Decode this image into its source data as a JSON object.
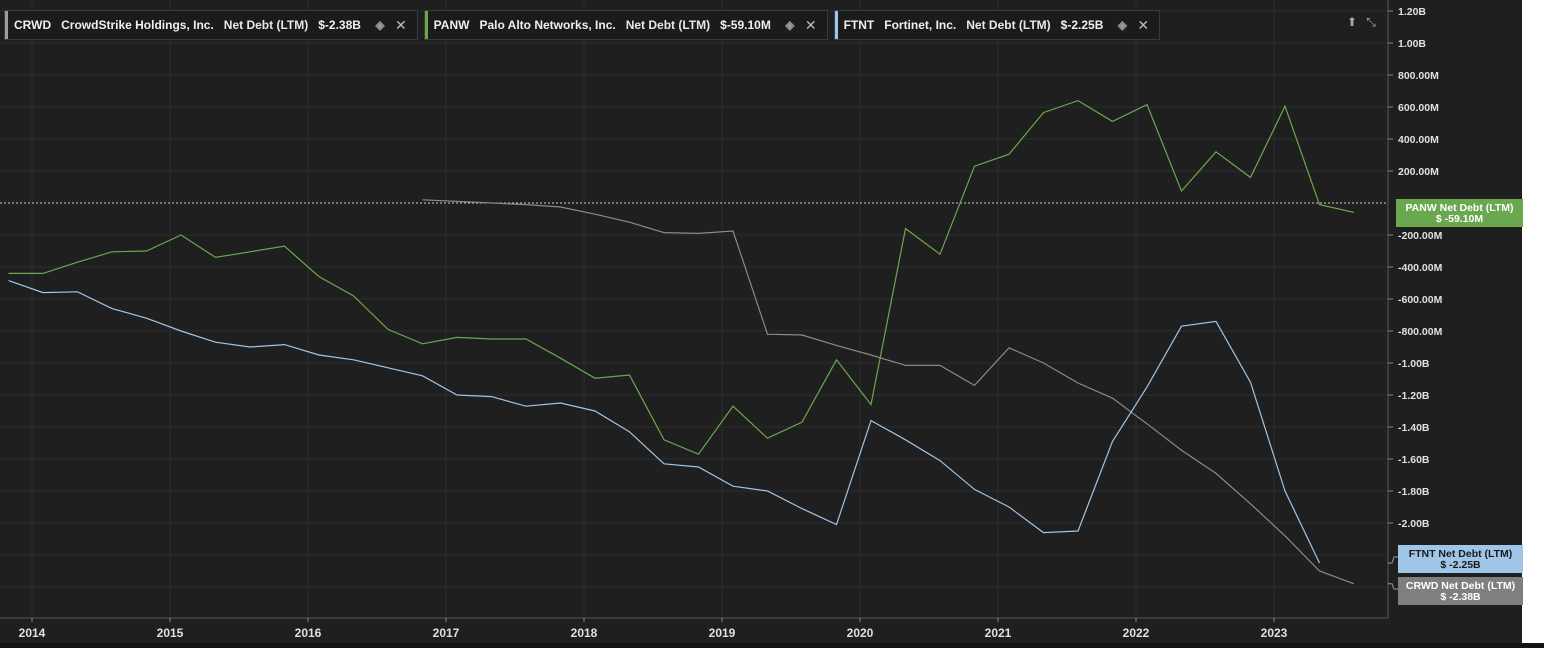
{
  "legend": [
    {
      "ticker": "CRWD",
      "company": "CrowdStrike Holdings, Inc.",
      "metric": "Net Debt (LTM)",
      "value": "$-2.38B",
      "color": "#9e9e9e"
    },
    {
      "ticker": "PANW",
      "company": "Palo Alto Networks, Inc.",
      "metric": "Net Debt (LTM)",
      "value": "$-59.10M",
      "color": "#6aa84f"
    },
    {
      "ticker": "FTNT",
      "company": "Fortinet, Inc.",
      "metric": "Net Debt (LTM)",
      "value": "$-2.25B",
      "color": "#9fc5e8"
    }
  ],
  "tags": {
    "panw": {
      "line1": "PANW Net Debt (LTM)",
      "line2": "$ -59.10M",
      "color": "#6aa84f",
      "text_color": "#ffffff"
    },
    "ftnt": {
      "line1": "FTNT Net Debt (LTM)",
      "line2": "$ -2.25B",
      "color": "#9fc5e8",
      "text_color": "#1a1a1a"
    },
    "crwd": {
      "line1": "CRWD Net Debt (LTM)",
      "line2": "$ -2.38B",
      "color": "#7f7f7f",
      "text_color": "#ffffff"
    }
  },
  "chart_data": {
    "type": "line",
    "ylim": [
      -2500,
      1200
    ],
    "xlim": [
      2013.83,
      2023.92
    ],
    "y_ticks": [
      1200,
      1000,
      800,
      600,
      400,
      200,
      -200,
      -400,
      -600,
      -800,
      -1000,
      -1200,
      -1400,
      -1600,
      -1800,
      -2000
    ],
    "y_tick_labels": [
      "1.20B",
      "1.00B",
      "800.00M",
      "600.00M",
      "400.00M",
      "200.00M",
      "-200.00M",
      "-400.00M",
      "-600.00M",
      "-800.00M",
      "-1.00B",
      "-1.20B",
      "-1.40B",
      "-1.60B",
      "-1.80B",
      "-2.00B"
    ],
    "x_ticks": [
      2014,
      2015,
      2016,
      2017,
      2018,
      2019,
      2020,
      2021,
      2022,
      2023
    ],
    "x_tick_labels": [
      "2014",
      "2015",
      "2016",
      "2017",
      "2018",
      "2019",
      "2020",
      "2021",
      "2022",
      "2023"
    ],
    "zero_line": 0,
    "series": [
      {
        "name": "PANW",
        "color": "#6aa84f",
        "points": [
          [
            2013.83,
            -440
          ],
          [
            2014.08,
            -440
          ],
          [
            2014.33,
            -370
          ],
          [
            2014.58,
            -305
          ],
          [
            2014.83,
            -300
          ],
          [
            2015.08,
            -200
          ],
          [
            2015.33,
            -340
          ],
          [
            2015.58,
            -305
          ],
          [
            2015.83,
            -270
          ],
          [
            2016.08,
            -460
          ],
          [
            2016.33,
            -580
          ],
          [
            2016.58,
            -790
          ],
          [
            2016.83,
            -880
          ],
          [
            2017.08,
            -840
          ],
          [
            2017.33,
            -850
          ],
          [
            2017.58,
            -850
          ],
          [
            2017.83,
            -970
          ],
          [
            2018.08,
            -1095
          ],
          [
            2018.33,
            -1075
          ],
          [
            2018.58,
            -1480
          ],
          [
            2018.83,
            -1570
          ],
          [
            2019.08,
            -1270
          ],
          [
            2019.33,
            -1470
          ],
          [
            2019.58,
            -1370
          ],
          [
            2019.83,
            -980
          ],
          [
            2020.08,
            -1260
          ],
          [
            2020.33,
            -160
          ],
          [
            2020.58,
            -320
          ],
          [
            2020.83,
            230
          ],
          [
            2021.08,
            305
          ],
          [
            2021.33,
            565
          ],
          [
            2021.58,
            640
          ],
          [
            2021.83,
            510
          ],
          [
            2022.08,
            615
          ],
          [
            2022.33,
            75
          ],
          [
            2022.58,
            320
          ],
          [
            2022.83,
            160
          ],
          [
            2023.08,
            605
          ],
          [
            2023.33,
            -10
          ],
          [
            2023.58,
            -59
          ]
        ]
      },
      {
        "name": "FTNT",
        "color": "#9fc5e8",
        "points": [
          [
            2013.83,
            -485
          ],
          [
            2014.08,
            -560
          ],
          [
            2014.33,
            -555
          ],
          [
            2014.58,
            -660
          ],
          [
            2014.83,
            -720
          ],
          [
            2015.08,
            -800
          ],
          [
            2015.33,
            -870
          ],
          [
            2015.58,
            -900
          ],
          [
            2015.83,
            -885
          ],
          [
            2016.08,
            -950
          ],
          [
            2016.33,
            -980
          ],
          [
            2016.58,
            -1030
          ],
          [
            2016.83,
            -1080
          ],
          [
            2017.08,
            -1200
          ],
          [
            2017.33,
            -1210
          ],
          [
            2017.58,
            -1270
          ],
          [
            2017.83,
            -1250
          ],
          [
            2018.08,
            -1300
          ],
          [
            2018.33,
            -1430
          ],
          [
            2018.58,
            -1630
          ],
          [
            2018.83,
            -1650
          ],
          [
            2019.08,
            -1770
          ],
          [
            2019.33,
            -1800
          ],
          [
            2019.58,
            -1910
          ],
          [
            2019.83,
            -2010
          ],
          [
            2020.08,
            -1360
          ],
          [
            2020.33,
            -1480
          ],
          [
            2020.58,
            -1610
          ],
          [
            2020.83,
            -1790
          ],
          [
            2021.08,
            -1900
          ],
          [
            2021.33,
            -2060
          ],
          [
            2021.58,
            -2050
          ],
          [
            2021.83,
            -1490
          ],
          [
            2022.08,
            -1150
          ],
          [
            2022.33,
            -770
          ],
          [
            2022.58,
            -740
          ],
          [
            2022.83,
            -1120
          ],
          [
            2023.08,
            -1800
          ],
          [
            2023.33,
            -2250
          ]
        ]
      },
      {
        "name": "CRWD",
        "color": "#8a8a8a",
        "points": [
          [
            2016.83,
            20
          ],
          [
            2017.08,
            10
          ],
          [
            2017.33,
            0
          ],
          [
            2017.58,
            -10
          ],
          [
            2017.83,
            -25
          ],
          [
            2018.08,
            -70
          ],
          [
            2018.33,
            -120
          ],
          [
            2018.58,
            -185
          ],
          [
            2018.83,
            -190
          ],
          [
            2019.08,
            -175
          ],
          [
            2019.33,
            -820
          ],
          [
            2019.58,
            -825
          ],
          [
            2019.83,
            -890
          ],
          [
            2020.08,
            -950
          ],
          [
            2020.33,
            -1015
          ],
          [
            2020.58,
            -1015
          ],
          [
            2020.83,
            -1140
          ],
          [
            2021.08,
            -905
          ],
          [
            2021.33,
            -1000
          ],
          [
            2021.58,
            -1125
          ],
          [
            2021.83,
            -1220
          ],
          [
            2022.08,
            -1380
          ],
          [
            2022.33,
            -1545
          ],
          [
            2022.58,
            -1690
          ],
          [
            2022.83,
            -1880
          ],
          [
            2023.08,
            -2080
          ],
          [
            2023.33,
            -2300
          ],
          [
            2023.58,
            -2380
          ]
        ]
      }
    ]
  }
}
